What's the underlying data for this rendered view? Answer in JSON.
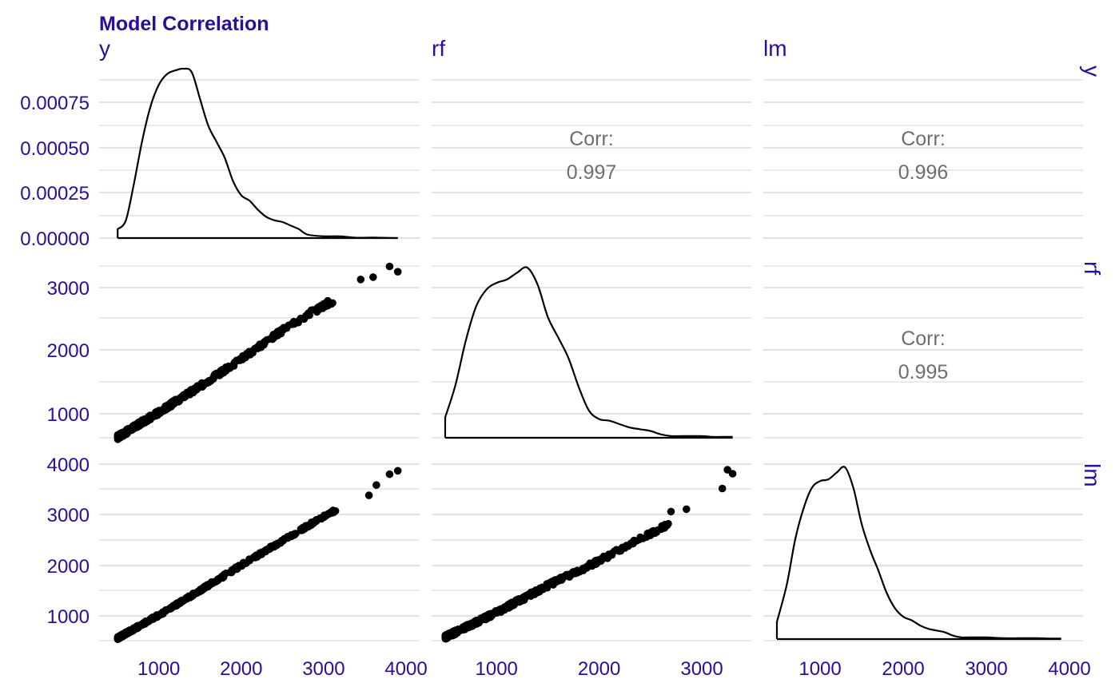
{
  "chart_data": {
    "type": "scatter",
    "title": "Model Correlation",
    "variables": [
      "y",
      "rf",
      "lm"
    ],
    "colors": {
      "title": "#2b0d99",
      "axis_text": "#2b0d99",
      "corr_text": "#6e6e6e",
      "grid": "#e3e3e3",
      "marks": "#000000"
    },
    "grid": true,
    "axes": {
      "y_density_ticks": {
        "values": [
          0,
          0.00025,
          0.0005,
          0.00075
        ],
        "labels": [
          "0.00000",
          "0.00025",
          "0.00050",
          "0.00075"
        ]
      },
      "y_range_rf_row": [
        470,
        3340
      ],
      "y_range_lm_row": [
        460,
        3950
      ],
      "x_range_y": [
        450,
        4000
      ],
      "x_range_rf": [
        500,
        3350
      ],
      "x_range_lm": [
        480,
        4000
      ],
      "x_ticks_y": [
        "1000",
        "2000",
        "3000",
        "4000"
      ],
      "x_ticks_rf": [
        "1000",
        "2000",
        "3000"
      ],
      "x_ticks_lm": [
        "1000",
        "2000",
        "3000",
        "4000"
      ],
      "y_ticks_rf": [
        "1000",
        "2000",
        "3000"
      ],
      "y_ticks_lm": [
        "1000",
        "2000",
        "3000",
        "4000"
      ]
    },
    "correlations": [
      {
        "row": "y",
        "col": "rf",
        "label": "Corr:",
        "value": "0.997"
      },
      {
        "row": "y",
        "col": "lm",
        "label": "Corr:",
        "value": "0.996"
      },
      {
        "row": "rf",
        "col": "lm",
        "label": "Corr:",
        "value": "0.995"
      }
    ],
    "densities": [
      {
        "variable": "y",
        "x": [
          500,
          600,
          700,
          800,
          900,
          1000,
          1100,
          1200,
          1300,
          1400,
          1500,
          1600,
          1700,
          1800,
          1900,
          2000,
          2100,
          2200,
          2300,
          2400,
          2500,
          2600,
          2700,
          2800,
          3000,
          3200,
          3400,
          3600,
          3800,
          3900
        ],
        "y": [
          5e-05,
          0.0001,
          0.00031,
          0.00055,
          0.00074,
          0.00086,
          0.00092,
          0.00094,
          0.00095,
          0.00093,
          0.00078,
          0.00063,
          0.00054,
          0.00045,
          0.00032,
          0.00024,
          0.00021,
          0.00016,
          0.00012,
          0.0001,
          9e-05,
          7e-05,
          5e-05,
          2e-05,
          1e-05,
          1e-05,
          2e-06,
          3e-06,
          5e-07,
          5e-07
        ]
      },
      {
        "variable": "rf",
        "x": [
          500,
          600,
          700,
          800,
          900,
          1000,
          1100,
          1200,
          1300,
          1400,
          1500,
          1600,
          1700,
          1800,
          1900,
          2000,
          2100,
          2200,
          2300,
          2400,
          2500,
          2600,
          2700,
          2800,
          2900,
          3000,
          3100,
          3200,
          3300
        ],
        "y": [
          0.12,
          0.31,
          0.57,
          0.77,
          0.87,
          0.91,
          0.93,
          0.97,
          1.0,
          0.9,
          0.71,
          0.59,
          0.47,
          0.3,
          0.16,
          0.11,
          0.1,
          0.08,
          0.06,
          0.05,
          0.04,
          0.02,
          0.01,
          0.01,
          0.01,
          0.01,
          0.005,
          0.005,
          0.005
        ]
      },
      {
        "variable": "lm",
        "x": [
          480,
          600,
          700,
          800,
          900,
          1000,
          1100,
          1200,
          1300,
          1400,
          1500,
          1600,
          1700,
          1800,
          1900,
          2000,
          2100,
          2200,
          2300,
          2400,
          2500,
          2600,
          2700,
          2800,
          3000,
          3200,
          3400,
          3600,
          3800,
          3900
        ],
        "y": [
          0.1,
          0.32,
          0.58,
          0.76,
          0.88,
          0.92,
          0.93,
          0.97,
          1.0,
          0.88,
          0.67,
          0.52,
          0.4,
          0.27,
          0.18,
          0.13,
          0.11,
          0.08,
          0.06,
          0.05,
          0.04,
          0.02,
          0.01,
          0.01,
          0.01,
          0.005,
          0.005,
          0.005,
          0.003,
          0.003
        ]
      }
    ],
    "scatter_pairs": [
      {
        "x_var": "y",
        "y_var": "rf",
        "trend_x": [
          500,
          1000,
          1500,
          2000,
          2500,
          3000,
          3500,
          3900
        ],
        "trend_y": [
          480,
          900,
          1340,
          1800,
          2280,
          2700,
          3040,
          3300
        ],
        "spread": 40,
        "outliers": [
          [
            3600,
            3180
          ],
          [
            3800,
            3360
          ],
          [
            3900,
            3270
          ],
          [
            3450,
            3140
          ],
          [
            3050,
            2780
          ],
          [
            2850,
            2620
          ]
        ]
      },
      {
        "x_var": "y",
        "y_var": "lm",
        "trend_x": [
          500,
          1000,
          1500,
          2000,
          2500,
          3000,
          3500,
          3900
        ],
        "trend_y": [
          480,
          950,
          1450,
          1960,
          2460,
          2950,
          3400,
          3880
        ],
        "spread": 30,
        "outliers": [
          [
            3800,
            3810
          ],
          [
            3900,
            3880
          ],
          [
            3550,
            3380
          ],
          [
            3640,
            3590
          ]
        ]
      },
      {
        "x_var": "rf",
        "y_var": "lm",
        "trend_x": [
          500,
          1000,
          1500,
          2000,
          2500,
          2800,
          3000,
          3300
        ],
        "trend_y": [
          500,
          1000,
          1550,
          2050,
          2600,
          2950,
          3200,
          3800
        ],
        "spread": 45,
        "outliers": [
          [
            3250,
            3900
          ],
          [
            3300,
            3820
          ],
          [
            3200,
            3520
          ],
          [
            2850,
            3100
          ],
          [
            2700,
            3050
          ]
        ]
      }
    ]
  }
}
